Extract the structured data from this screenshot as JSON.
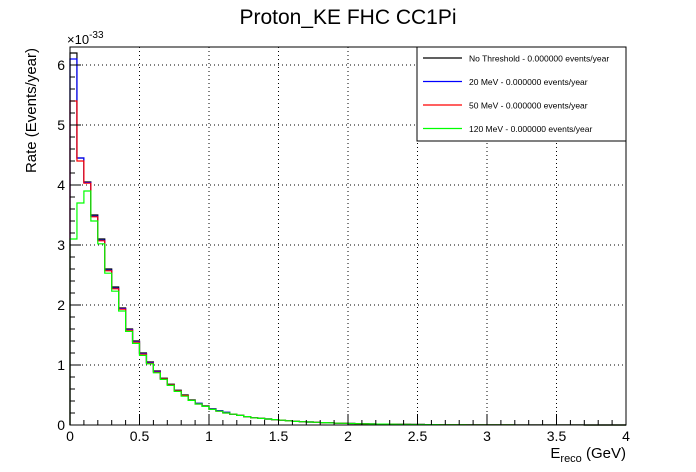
{
  "chart_data": {
    "type": "line",
    "title": "Proton_KE FHC CC1Pi",
    "xlabel_main": "E",
    "xlabel_sub": "reco",
    "xlabel_unit": " (GeV)",
    "ylabel": "Rate (Events/year)",
    "y_exponent_label": "×10",
    "y_exponent_power": "-33",
    "xlim": [
      0,
      4
    ],
    "ylim": [
      0,
      6.3
    ],
    "x_ticks": [
      0,
      0.5,
      1,
      1.5,
      2,
      2.5,
      3,
      3.5,
      4
    ],
    "x_tick_labels": [
      "0",
      "0.5",
      "1",
      "1.5",
      "2",
      "2.5",
      "3",
      "3.5",
      "4"
    ],
    "y_ticks": [
      0,
      1,
      2,
      3,
      4,
      5,
      6
    ],
    "y_tick_labels": [
      "0",
      "1",
      "2",
      "3",
      "4",
      "5",
      "6"
    ],
    "grid": true,
    "legend_position": "top-right",
    "bin_width": 0.05,
    "series": [
      {
        "name": "No Threshold - 0.000000 events/year",
        "color": "#000000",
        "values": [
          6.2,
          4.45,
          4.05,
          3.5,
          3.1,
          2.6,
          2.3,
          1.95,
          1.6,
          1.4,
          1.2,
          1.05,
          0.9,
          0.78,
          0.68,
          0.58,
          0.5,
          0.42,
          0.36,
          0.32,
          0.27,
          0.24,
          0.21,
          0.18,
          0.16,
          0.14,
          0.12,
          0.11,
          0.1,
          0.09,
          0.08,
          0.07,
          0.06,
          0.055,
          0.05,
          0.045,
          0.04,
          0.035,
          0.03,
          0.028,
          0.025,
          0.022,
          0.02,
          0.018,
          0.016,
          0.014,
          0.012,
          0.011,
          0.01,
          0.009,
          0.008,
          0.007,
          0.006,
          0.005,
          0.005,
          0.004,
          0.004,
          0.003,
          0.003,
          0.003,
          0.002,
          0.002,
          0.002,
          0.002,
          0.001,
          0.001,
          0.001,
          0.001,
          0.001,
          0.001,
          0.001,
          0.001,
          0.001,
          0.001,
          0.0,
          0.0,
          0.0,
          0.0,
          0.0,
          0.0
        ]
      },
      {
        "name": "20 MeV - 0.000000 events/year",
        "color": "#0000ff",
        "values": [
          6.1,
          4.45,
          4.04,
          3.48,
          3.08,
          2.58,
          2.28,
          1.94,
          1.59,
          1.39,
          1.19,
          1.04,
          0.89,
          0.77,
          0.67,
          0.57,
          0.49,
          0.41,
          0.36,
          0.31,
          0.27,
          0.24,
          0.21,
          0.18,
          0.16,
          0.14,
          0.12,
          0.11,
          0.1,
          0.09,
          0.08,
          0.07,
          0.06,
          0.055,
          0.05,
          0.045,
          0.04,
          0.035,
          0.03,
          0.028,
          0.025,
          0.022,
          0.02,
          0.018,
          0.016,
          0.014,
          0.012,
          0.011,
          0.01,
          0.009,
          0.008,
          0.007,
          0.006,
          0.005,
          0.005,
          0.004,
          0.004,
          0.003,
          0.003,
          0.003,
          0.002,
          0.002,
          0.002,
          0.002,
          0.001,
          0.001,
          0.001,
          0.001,
          0.001,
          0.001,
          0.001,
          0.001,
          0.001,
          0.001,
          0.0,
          0.0,
          0.0,
          0.0,
          0.0,
          0.0
        ]
      },
      {
        "name": "50 MeV - 0.000000 events/year",
        "color": "#ff0000",
        "values": [
          5.4,
          4.4,
          4.03,
          3.47,
          3.07,
          2.57,
          2.27,
          1.93,
          1.58,
          1.38,
          1.18,
          1.03,
          0.88,
          0.77,
          0.67,
          0.57,
          0.49,
          0.41,
          0.35,
          0.31,
          0.26,
          0.23,
          0.2,
          0.18,
          0.16,
          0.14,
          0.12,
          0.11,
          0.1,
          0.09,
          0.08,
          0.07,
          0.06,
          0.055,
          0.05,
          0.045,
          0.04,
          0.035,
          0.03,
          0.028,
          0.025,
          0.022,
          0.02,
          0.018,
          0.016,
          0.014,
          0.012,
          0.011,
          0.01,
          0.009,
          0.008,
          0.007,
          0.006,
          0.005,
          0.005,
          0.004,
          0.004,
          0.003,
          0.003,
          0.003,
          0.002,
          0.002,
          0.002,
          0.002,
          0.001,
          0.001,
          0.001,
          0.001,
          0.001,
          0.001,
          0.001,
          0.001,
          0.001,
          0.001,
          0.0,
          0.0,
          0.0,
          0.0,
          0.0,
          0.0
        ]
      },
      {
        "name": "120 MeV - 0.000000 events/year",
        "color": "#00ff00",
        "values": [
          3.1,
          3.7,
          3.9,
          3.4,
          3.02,
          2.53,
          2.23,
          1.9,
          1.56,
          1.36,
          1.16,
          1.02,
          0.87,
          0.76,
          0.66,
          0.56,
          0.48,
          0.41,
          0.35,
          0.31,
          0.26,
          0.23,
          0.2,
          0.18,
          0.16,
          0.14,
          0.12,
          0.11,
          0.1,
          0.09,
          0.08,
          0.07,
          0.06,
          0.055,
          0.05,
          0.045,
          0.04,
          0.035,
          0.03,
          0.028,
          0.025,
          0.022,
          0.02,
          0.018,
          0.016,
          0.014,
          0.012,
          0.011,
          0.01,
          0.009,
          0.008,
          0.007,
          0.006,
          0.005,
          0.005,
          0.004,
          0.004,
          0.003,
          0.003,
          0.003,
          0.002,
          0.002,
          0.002,
          0.002,
          0.001,
          0.001,
          0.001,
          0.001,
          0.001,
          0.001,
          0.001,
          0.001,
          0.001,
          0.001,
          0.0,
          0.0,
          0.0,
          0.0,
          0.0,
          0.0
        ]
      }
    ]
  }
}
